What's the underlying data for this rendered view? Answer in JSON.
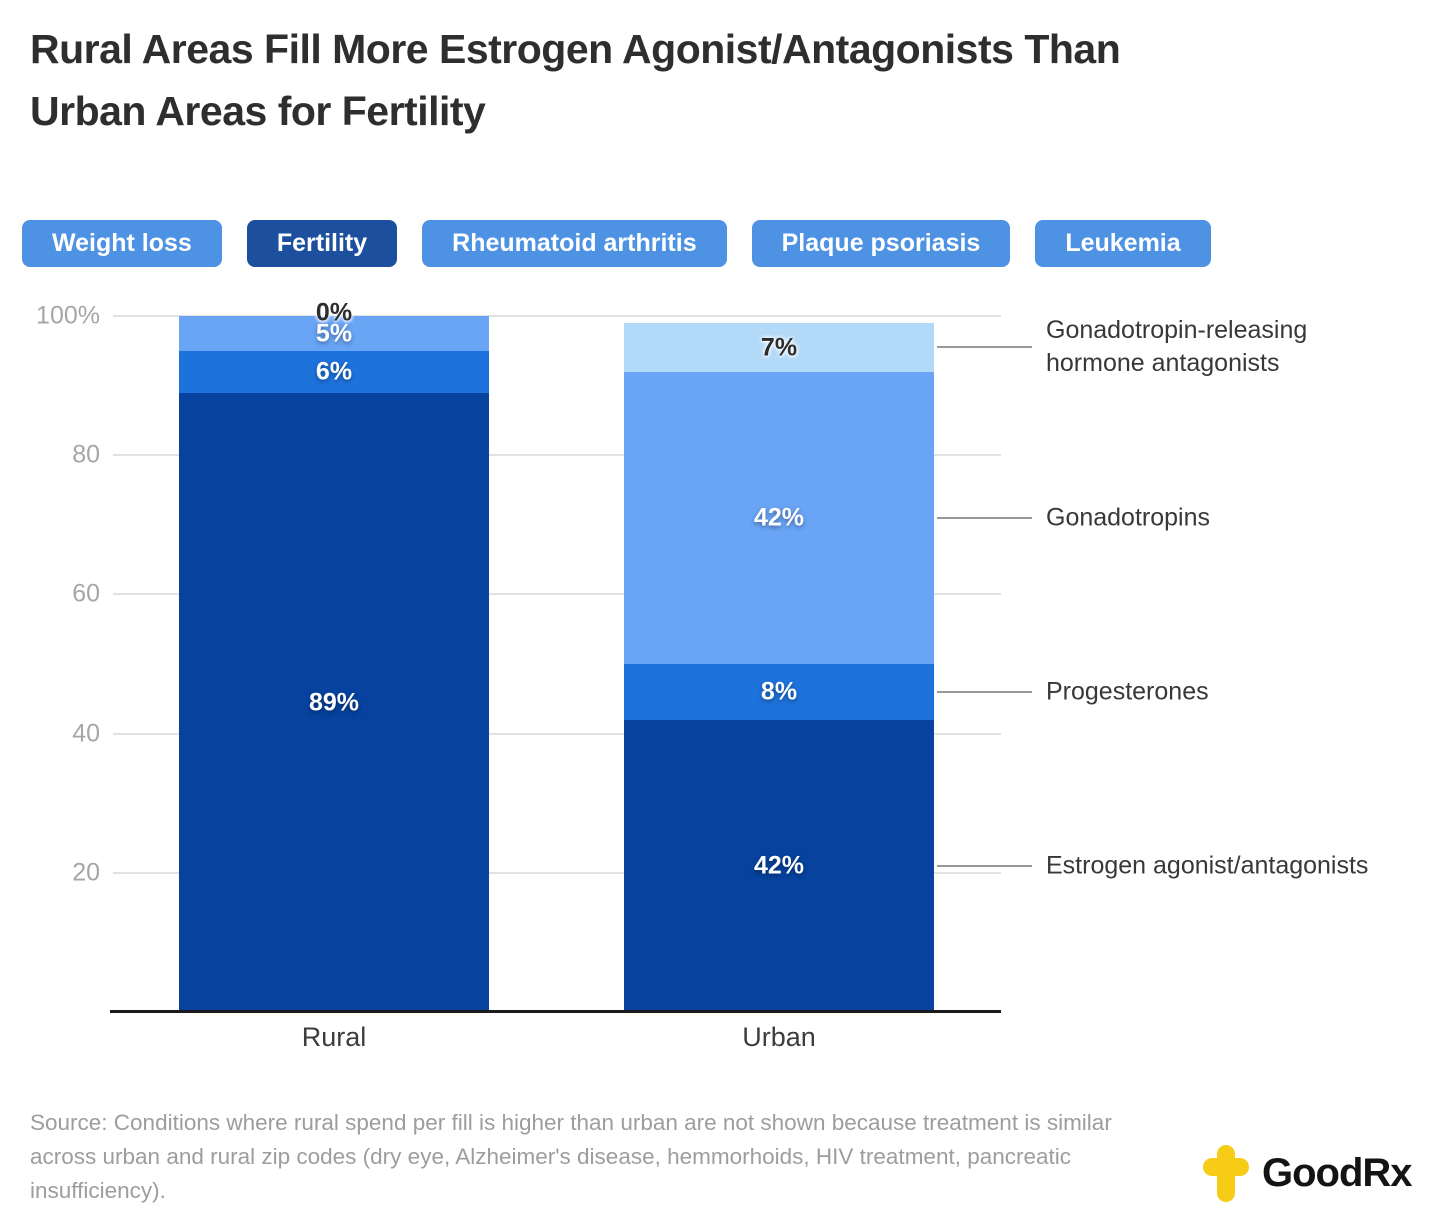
{
  "header": {
    "title_line1": "Rural Areas Fill More Estrogen Agonist/Antagonists Than",
    "title_line2": "Urban Areas for Fertility"
  },
  "tabs": [
    {
      "label": "Weight loss",
      "active": false
    },
    {
      "label": "Fertility",
      "active": true
    },
    {
      "label": "Rheumatoid arthritis",
      "active": false
    },
    {
      "label": "Plaque psoriasis",
      "active": false
    },
    {
      "label": "Leukemia",
      "active": false
    }
  ],
  "colors": {
    "tab": "#4e92e4",
    "tab_active": "#1c4f9e",
    "gridline": "#e2e2e2",
    "leader_line": "#999999",
    "axis_line": "#1a1a1a",
    "ytick_text": "#a6a6a6",
    "logo_yellow": "#f6cc16"
  },
  "chart_data": {
    "type": "bar",
    "subtype": "stacked-percent-column",
    "categories": [
      "Rural",
      "Urban"
    ],
    "series": [
      {
        "name": "Estrogen agonist/antagonists",
        "color": "#06429e",
        "values": [
          89,
          42
        ]
      },
      {
        "name": "Progesterones",
        "color": "#1e72dc",
        "values": [
          6,
          8
        ]
      },
      {
        "name": "Gonadotropins",
        "color": "#69a4f5",
        "values": [
          5,
          42
        ]
      },
      {
        "name": "Gonadotropin-releasing hormone antagonists",
        "color": "#b3d9f8",
        "values": [
          0,
          7
        ]
      }
    ],
    "value_label_format": "{v}%",
    "ylim": [
      0,
      100
    ],
    "yticks": [
      {
        "label": "100%",
        "value": 100
      },
      {
        "label": "80",
        "value": 80
      },
      {
        "label": "60",
        "value": 60
      },
      {
        "label": "40",
        "value": 40
      },
      {
        "label": "20",
        "value": 20
      }
    ],
    "grid": true,
    "legend_position": "right-annotations"
  },
  "source": {
    "text": "Source: Conditions where rural spend per fill is higher than urban are not shown because treatment is similar across urban and rural zip codes (dry eye, Alzheimer's disease, hemmorhoids, HIV treatment, pancreatic insufficiency)."
  },
  "logo": {
    "text": "GoodRx",
    "icon": "goodrx-cross-icon"
  }
}
